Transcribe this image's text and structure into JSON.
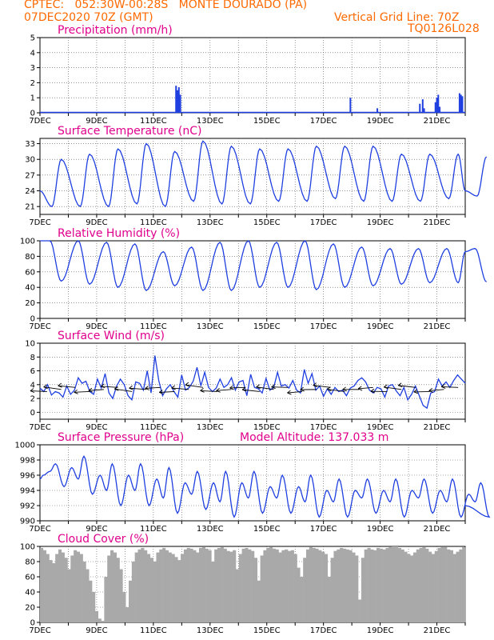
{
  "header": {
    "line1": "CPTEC:   052:30W-00:28S   MONTE DOURADO (PA)",
    "line2_left": "07DEC2020 70Z (GMT)",
    "line2_right": "Vertical Grid Line: 70Z",
    "line3_right": "TQ0126L028"
  },
  "colors": {
    "header": "#ff6a00",
    "title": "#e0008c",
    "series": "#1f3fe0",
    "cloud": "#a9a9a9",
    "wind_arrow": "#000000"
  },
  "chart_data": [
    {
      "id": "precip",
      "type": "bar",
      "title": "Precipitation (mm/h)",
      "ylim": [
        0,
        5
      ],
      "yticks": [
        0,
        1,
        2,
        3,
        4,
        5
      ],
      "xlabels": [
        "7DEC",
        "9DEC",
        "11DEC",
        "13DEC",
        "15DEC",
        "17DEC",
        "19DEC",
        "21DEC"
      ],
      "series": [
        {
          "bars": [
            [
              11.8,
              1.8
            ],
            [
              11.85,
              1.5
            ],
            [
              11.9,
              1.7
            ],
            [
              11.95,
              1.2
            ],
            [
              17.95,
              1.0
            ],
            [
              18.9,
              0.3
            ],
            [
              20.4,
              0.6
            ],
            [
              20.5,
              0.9
            ],
            [
              20.55,
              0.3
            ],
            [
              20.95,
              0.7
            ],
            [
              21.0,
              1.0
            ],
            [
              21.05,
              1.2
            ],
            [
              21.1,
              0.4
            ],
            [
              21.8,
              1.3
            ],
            [
              21.85,
              1.2
            ],
            [
              21.9,
              1.1
            ]
          ]
        }
      ]
    },
    {
      "id": "temp",
      "type": "line",
      "title": "Surface Temperature (nC)",
      "ylim": [
        19.5,
        34
      ],
      "yticks": [
        21,
        24,
        27,
        30,
        33
      ],
      "xlabels": [
        "7DEC",
        "9DEC",
        "11DEC",
        "13DEC",
        "15DEC",
        "17DEC",
        "19DEC",
        "21DEC"
      ],
      "series": [
        {
          "diurnal": {
            "min": [
              21,
              21,
              21,
              21.5,
              21,
              22,
              21.5,
              21.5,
              22,
              22,
              22.5,
              22,
              22,
              22,
              22.5,
              23
            ],
            "max": [
              30,
              31,
              32,
              33,
              31.5,
              33.5,
              32.5,
              32,
              32,
              32.5,
              32.5,
              32.5,
              31,
              31,
              31,
              30.5
            ],
            "start": 24,
            "end": 24
          }
        }
      ]
    },
    {
      "id": "rh",
      "type": "line",
      "title": "Relative Humidity (%)",
      "ylim": [
        0,
        100
      ],
      "yticks": [
        0,
        20,
        40,
        60,
        80,
        100
      ],
      "xlabels": [
        "7DEC",
        "9DEC",
        "11DEC",
        "13DEC",
        "15DEC",
        "17DEC",
        "19DEC",
        "21DEC"
      ],
      "series": [
        {
          "diurnal": {
            "min": [
              48,
              44,
              40,
              36,
              42,
              36,
              36,
              40,
              40,
              37,
              40,
              42,
              44,
              46,
              46,
              47
            ],
            "max": [
              100,
              100,
              98,
              96,
              86,
              92,
              98,
              100,
              98,
              100,
              96,
              92,
              90,
              90,
              90,
              90
            ],
            "start": 100,
            "end": 86
          }
        }
      ]
    },
    {
      "id": "wind",
      "type": "line",
      "title": "Surface Wind (m/s)",
      "ylim": [
        -1,
        10
      ],
      "yticks": [
        0,
        2,
        4,
        6,
        8,
        10
      ],
      "xlabels": [
        "7DEC",
        "9DEC",
        "11DEC",
        "13DEC",
        "15DEC",
        "17DEC",
        "19DEC",
        "21DEC"
      ],
      "series": [
        {
          "speed": [
            3.5,
            3.0,
            4.0,
            2.5,
            3.0,
            2.8,
            2.2,
            3.8,
            2.6,
            3.2,
            5.0,
            4.2,
            4.5,
            3.0,
            2.6,
            4.8,
            3.5,
            5.6,
            2.8,
            2.0,
            3.8,
            4.8,
            4.0,
            2.4,
            1.8,
            4.4,
            4.2,
            3.2,
            6.0,
            2.8,
            8.2,
            4.6,
            2.4,
            3.4,
            4.0,
            3.0,
            2.2,
            5.4,
            3.2,
            3.6,
            4.5,
            6.5,
            3.8,
            5.8,
            3.6,
            3.0,
            3.5,
            4.8,
            3.6,
            4.0,
            5.0,
            3.2,
            4.4,
            4.6,
            2.4,
            5.5,
            3.6,
            3.4,
            2.8,
            4.9,
            3.2,
            3.6,
            5.8,
            3.8,
            4.0,
            3.5,
            4.6,
            3.2,
            2.8,
            6.2,
            4.2,
            5.6,
            3.2,
            3.8,
            2.3,
            3.4,
            2.6,
            3.6,
            3.0,
            3.2,
            2.4,
            3.5,
            3.8,
            4.6,
            5.0,
            4.4,
            3.2,
            2.8,
            3.6,
            3.4,
            2.2,
            3.8,
            4.0,
            3.1,
            2.4,
            3.6,
            1.8,
            2.6,
            3.8,
            2.4,
            1.0,
            0.6,
            2.8,
            3.0,
            4.8,
            3.8,
            4.4,
            3.6,
            4.6,
            5.4,
            4.8,
            4.2
          ]
        }
      ]
    },
    {
      "id": "pressure",
      "type": "line",
      "title": "Surface Pressure (hPa)",
      "annotation": "Model Altitude: 137.033 m",
      "ylim": [
        990,
        1000
      ],
      "yticks": [
        990,
        992,
        994,
        996,
        998,
        1000
      ],
      "xlabels": [
        "7DEC",
        "9DEC",
        "11DEC",
        "13DEC",
        "15DEC",
        "17DEC",
        "19DEC",
        "21DEC"
      ],
      "series": [
        {
          "semidiurnal": {
            "hi": [
              997.5,
              998.5,
              997.5,
              997.5,
              997.0,
              996.5,
              996.5,
              996.5,
              996.0,
              996.0,
              995.5,
              995.5,
              995.5,
              995.5,
              995.5,
              995.0
            ],
            "lo": [
              994.5,
              993.5,
              992.0,
              992.0,
              991.0,
              991.5,
              990.5,
              991.0,
              991.0,
              990.5,
              990.5,
              991.0,
              990.5,
              991.0,
              990.5,
              990.5
            ],
            "start": 995.5,
            "end": 992
          }
        }
      ]
    },
    {
      "id": "cloud",
      "type": "area",
      "title": "Cloud Cover (%)",
      "ylim": [
        0,
        100
      ],
      "yticks": [
        0,
        20,
        40,
        60,
        80,
        100
      ],
      "xlabels": [
        "7DEC",
        "9DEC",
        "11DEC",
        "13DEC",
        "15DEC",
        "17DEC",
        "19DEC",
        "21DEC"
      ],
      "series": [
        {
          "values": [
            98,
            95,
            90,
            82,
            78,
            90,
            96,
            92,
            85,
            70,
            88,
            95,
            93,
            90,
            80,
            70,
            55,
            40,
            15,
            5,
            2,
            60,
            88,
            95,
            92,
            85,
            70,
            40,
            20,
            55,
            80,
            92,
            96,
            98,
            95,
            90,
            85,
            80,
            92,
            96,
            98,
            95,
            92,
            90,
            86,
            82,
            90,
            96,
            98,
            97,
            95,
            92,
            98,
            99,
            97,
            95,
            80,
            96,
            98,
            99,
            97,
            94,
            93,
            95,
            70,
            90,
            97,
            98,
            96,
            94,
            85,
            55,
            88,
            95,
            98,
            99,
            97,
            96,
            92,
            95,
            96,
            94,
            95,
            90,
            72,
            60,
            85,
            96,
            99,
            98,
            97,
            95,
            93,
            90,
            60,
            85,
            94,
            96,
            98,
            97,
            96,
            95,
            92,
            88,
            30,
            85,
            96,
            98,
            96,
            95,
            98,
            97,
            96,
            98,
            99,
            100,
            100,
            98,
            96,
            93,
            90,
            88,
            92,
            96,
            98,
            99,
            97,
            93,
            90,
            94,
            98,
            99,
            99,
            96,
            95,
            90,
            93,
            96,
            99
          ]
        }
      ]
    }
  ]
}
